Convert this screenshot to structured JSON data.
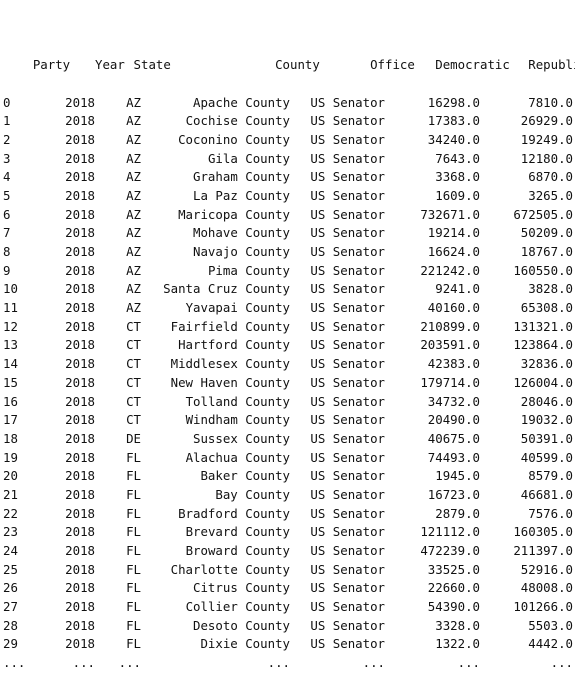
{
  "table": {
    "columns": [
      "Party",
      "Year",
      "State",
      "County",
      "Office",
      "Democratic",
      "Republican"
    ],
    "rows": [
      [
        "0",
        "2018",
        "AZ",
        "Apache County",
        "US Senator",
        "16298.0",
        "7810.0"
      ],
      [
        "1",
        "2018",
        "AZ",
        "Cochise County",
        "US Senator",
        "17383.0",
        "26929.0"
      ],
      [
        "2",
        "2018",
        "AZ",
        "Coconino County",
        "US Senator",
        "34240.0",
        "19249.0"
      ],
      [
        "3",
        "2018",
        "AZ",
        "Gila County",
        "US Senator",
        "7643.0",
        "12180.0"
      ],
      [
        "4",
        "2018",
        "AZ",
        "Graham County",
        "US Senator",
        "3368.0",
        "6870.0"
      ],
      [
        "5",
        "2018",
        "AZ",
        "La Paz County",
        "US Senator",
        "1609.0",
        "3265.0"
      ],
      [
        "6",
        "2018",
        "AZ",
        "Maricopa County",
        "US Senator",
        "732671.0",
        "672505.0"
      ],
      [
        "7",
        "2018",
        "AZ",
        "Mohave County",
        "US Senator",
        "19214.0",
        "50209.0"
      ],
      [
        "8",
        "2018",
        "AZ",
        "Navajo County",
        "US Senator",
        "16624.0",
        "18767.0"
      ],
      [
        "9",
        "2018",
        "AZ",
        "Pima County",
        "US Senator",
        "221242.0",
        "160550.0"
      ],
      [
        "10",
        "2018",
        "AZ",
        "Santa Cruz County",
        "US Senator",
        "9241.0",
        "3828.0"
      ],
      [
        "11",
        "2018",
        "AZ",
        "Yavapai County",
        "US Senator",
        "40160.0",
        "65308.0"
      ],
      [
        "12",
        "2018",
        "CT",
        "Fairfield County",
        "US Senator",
        "210899.0",
        "131321.0"
      ],
      [
        "13",
        "2018",
        "CT",
        "Hartford County",
        "US Senator",
        "203591.0",
        "123864.0"
      ],
      [
        "14",
        "2018",
        "CT",
        "Middlesex County",
        "US Senator",
        "42383.0",
        "32836.0"
      ],
      [
        "15",
        "2018",
        "CT",
        "New Haven County",
        "US Senator",
        "179714.0",
        "126004.0"
      ],
      [
        "16",
        "2018",
        "CT",
        "Tolland County",
        "US Senator",
        "34732.0",
        "28046.0"
      ],
      [
        "17",
        "2018",
        "CT",
        "Windham County",
        "US Senator",
        "20490.0",
        "19032.0"
      ],
      [
        "18",
        "2018",
        "DE",
        "Sussex County",
        "US Senator",
        "40675.0",
        "50391.0"
      ],
      [
        "19",
        "2018",
        "FL",
        "Alachua County",
        "US Senator",
        "74493.0",
        "40599.0"
      ],
      [
        "20",
        "2018",
        "FL",
        "Baker County",
        "US Senator",
        "1945.0",
        "8579.0"
      ],
      [
        "21",
        "2018",
        "FL",
        "Bay County",
        "US Senator",
        "16723.0",
        "46681.0"
      ],
      [
        "22",
        "2018",
        "FL",
        "Bradford County",
        "US Senator",
        "2879.0",
        "7576.0"
      ],
      [
        "23",
        "2018",
        "FL",
        "Brevard County",
        "US Senator",
        "121112.0",
        "160305.0"
      ],
      [
        "24",
        "2018",
        "FL",
        "Broward County",
        "US Senator",
        "472239.0",
        "211397.0"
      ],
      [
        "25",
        "2018",
        "FL",
        "Charlotte County",
        "US Senator",
        "33525.0",
        "52916.0"
      ],
      [
        "26",
        "2018",
        "FL",
        "Citrus County",
        "US Senator",
        "22660.0",
        "48008.0"
      ],
      [
        "27",
        "2018",
        "FL",
        "Collier County",
        "US Senator",
        "54390.0",
        "101266.0"
      ],
      [
        "28",
        "2018",
        "FL",
        "Desoto County",
        "US Senator",
        "3328.0",
        "5503.0"
      ],
      [
        "29",
        "2018",
        "FL",
        "Dixie County",
        "US Senator",
        "1322.0",
        "4442.0"
      ]
    ],
    "ellipsis": [
      "...",
      "...",
      "...",
      "...",
      "...",
      "...",
      "..."
    ]
  }
}
